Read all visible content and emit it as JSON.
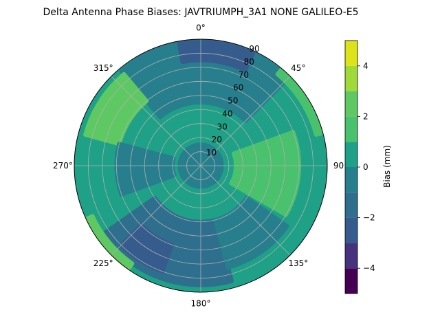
{
  "chart_data": {
    "type": "heatmap",
    "subtype": "polar-contour",
    "title": "Delta Antenna Phase Biases: JAVTRIUMPH_3A1  NONE GALILEO-E5",
    "theta_direction": "clockwise",
    "theta_zero": "top",
    "theta_ticks": [
      {
        "deg": 0,
        "label": "0°"
      },
      {
        "deg": 45,
        "label": "45°"
      },
      {
        "deg": 90,
        "label": "90"
      },
      {
        "deg": 135,
        "label": "135°"
      },
      {
        "deg": 180,
        "label": "180°"
      },
      {
        "deg": 225,
        "label": "225°"
      },
      {
        "deg": 270,
        "label": "270°"
      },
      {
        "deg": 315,
        "label": "315°"
      }
    ],
    "r_ticks": [
      {
        "value": 10,
        "label": "10"
      },
      {
        "value": 20,
        "label": "20"
      },
      {
        "value": 30,
        "label": "30"
      },
      {
        "value": 40,
        "label": "40"
      },
      {
        "value": 50,
        "label": "50"
      },
      {
        "value": 60,
        "label": "60"
      },
      {
        "value": 70,
        "label": "70"
      },
      {
        "value": 80,
        "label": "80"
      },
      {
        "value": 90,
        "label": "90"
      }
    ],
    "r_range": [
      0,
      90
    ],
    "grid": true,
    "colorbar": {
      "label": "Bias (mm)",
      "range": [
        -5,
        5
      ],
      "levels": [
        -5,
        -4.5,
        -4,
        -3.5,
        -3,
        -2.5,
        -2,
        -1.5,
        -1,
        -0.5,
        0,
        0.5,
        1,
        1.5,
        2,
        2.5,
        3,
        3.5,
        4,
        4.5,
        5
      ],
      "colors": [
        "#440154",
        "#46327e",
        "#365c8d",
        "#2e6f8e",
        "#277f8e",
        "#1fa187",
        "#4ac16d",
        "#5ec962",
        "#a0da39",
        "#dde318"
      ],
      "level_boundaries": [
        -5,
        -4,
        -3,
        -2,
        -1,
        0,
        1,
        2,
        3,
        4,
        5
      ],
      "ticks": [
        {
          "value": -4,
          "label": "−4"
        },
        {
          "value": -2,
          "label": "−2"
        },
        {
          "value": 0,
          "label": "0"
        },
        {
          "value": 2,
          "label": "2"
        },
        {
          "value": 4,
          "label": "4"
        }
      ]
    },
    "background_value": 0.5,
    "regions": [
      {
        "name": "north-low",
        "theta": [
          330,
          30
        ],
        "r": [
          70,
          90
        ],
        "value": -1.5
      },
      {
        "name": "north-ring",
        "theta": [
          320,
          45
        ],
        "r": [
          45,
          88
        ],
        "value": -0.5
      },
      {
        "name": "north-deep",
        "theta": [
          350,
          25
        ],
        "r": [
          75,
          88
        ],
        "value": -2.2
      },
      {
        "name": "east-high",
        "theta": [
          70,
          120
        ],
        "r": [
          25,
          70
        ],
        "value": 1.5
      },
      {
        "name": "west-high",
        "theta": [
          285,
          320
        ],
        "r": [
          60,
          85
        ],
        "value": 2.3
      },
      {
        "name": "south-low",
        "theta": [
          165,
          235
        ],
        "r": [
          40,
          85
        ],
        "value": -1.5
      },
      {
        "name": "south-deep",
        "theta": [
          200,
          225
        ],
        "r": [
          60,
          80
        ],
        "value": -2.3
      },
      {
        "name": "southwest-rim-high",
        "theta": [
          215,
          245
        ],
        "r": [
          85,
          90
        ],
        "value": 2.5
      },
      {
        "name": "northeast-rim-high",
        "theta": [
          40,
          75
        ],
        "r": [
          85,
          90
        ],
        "value": 1.5
      },
      {
        "name": "center-low",
        "theta": [
          0,
          360
        ],
        "r": [
          0,
          15
        ],
        "value": -0.5
      },
      {
        "name": "west-low",
        "theta": [
          250,
          285
        ],
        "r": [
          20,
          60
        ],
        "value": -0.6
      },
      {
        "name": "southeast-low",
        "theta": [
          125,
          165
        ],
        "r": [
          40,
          75
        ],
        "value": -0.7
      }
    ]
  }
}
